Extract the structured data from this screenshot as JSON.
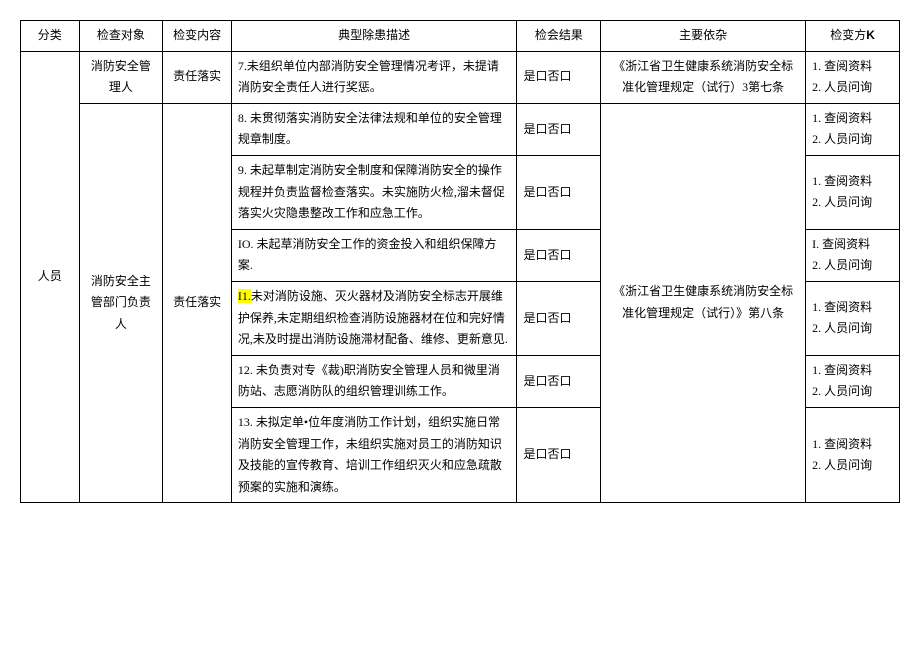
{
  "headers": {
    "cat": "分类",
    "obj": "检查对象",
    "cont": "检变内容",
    "desc": "典型除患描述",
    "res": "检会结果",
    "basis": "主要依杂",
    "meth_prefix": "检变方",
    "meth_suffix": "K"
  },
  "cat": "人员",
  "obj1": "消防安全管理人",
  "obj2": "消防安全主管部门负责人",
  "cont": "责任落实",
  "res": "是口否口",
  "basis1": "《浙江省卫生健康系统消防安全标准化管理规定（试行）3第七条",
  "basis2": "《浙江省卫生健康系统消防安全标准化管理规定（试行）》第八条",
  "meth_a": "1. 查阅资料",
  "meth_b": "2. 人员问询",
  "meth_a_roman": "I. 查阅资料",
  "rows": {
    "r7": "7.未组织单位内部消防安全管理情况考评，未提请消防安全责任人进行奖惩。",
    "r8": "8. 未贯彻落实消防安全法律法规和单位的安全管理规章制度。",
    "r9": "9. 未起草制定消防安全制度和保障消防安全的操作规程并负责监督检查落实。未实施防火检,溜未督促落实火灾隐患整改工作和应急工作。",
    "r10": "IO. 未起草消防安全工作的资金投入和组织保障方案.",
    "r11_num": "I1.",
    "r11_rest": "未对消防设施、灭火器材及消防安全标志开展维护保养,未定期组织检查消防设施器材在位和完好情况,未及时提出消防设施滞材配备、维修、更新意见.",
    "r12": "12. 未负责对专《裁)职消防安全管理人员和微里消防站、志愿消防队的组织管理训练工作。",
    "r13": "13. 未拟定单•位年度消防工作计划，组织实施日常消防安全管理工作，未组织实施对员工的消防知识及技能的宣传教育、培训工作组织灭火和应急疏散预案的实施和演练。"
  }
}
